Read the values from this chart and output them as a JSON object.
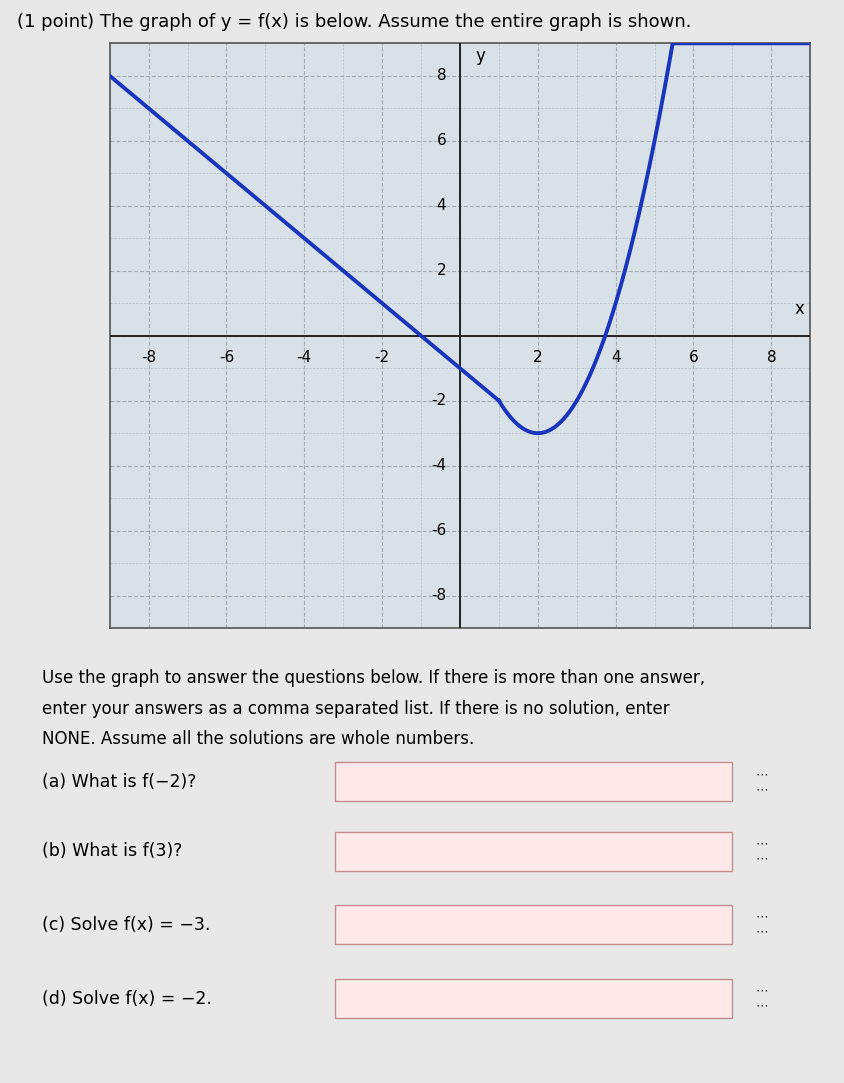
{
  "title": "(1 point) The graph of y = f(x) is below. Assume the entire graph is shown.",
  "x_min": -9,
  "x_max": 9,
  "y_min": -9,
  "y_max": 9,
  "curve_color": "#1a35bb",
  "curve_linewidth": 2.8,
  "grid_color": "#a0a8b0",
  "axis_color": "#222222",
  "plot_bg": "#d8e0e8",
  "outer_bg": "#e8e8e8",
  "figsize": [
    8.44,
    10.83
  ],
  "dpi": 100,
  "x_ticks": [
    -8,
    -6,
    -4,
    -2,
    2,
    4,
    6,
    8
  ],
  "y_ticks": [
    -8,
    -6,
    -4,
    -2,
    2,
    4,
    6,
    8
  ],
  "instruction_lines": [
    "Use the graph to answer the questions below. If there is more than one answer,",
    "enter your answers as a comma separated list. If there is no solution, enter",
    "NONE. Assume all the solutions are whole numbers."
  ],
  "questions": [
    "(a) What is f(−2)?",
    "(b) What is f(3)?",
    "(c) Solve f(x) = −3.",
    "(d) Solve f(x) = −2."
  ],
  "box_facecolor": "#ffe8e8",
  "box_edgecolor": "#c09090"
}
